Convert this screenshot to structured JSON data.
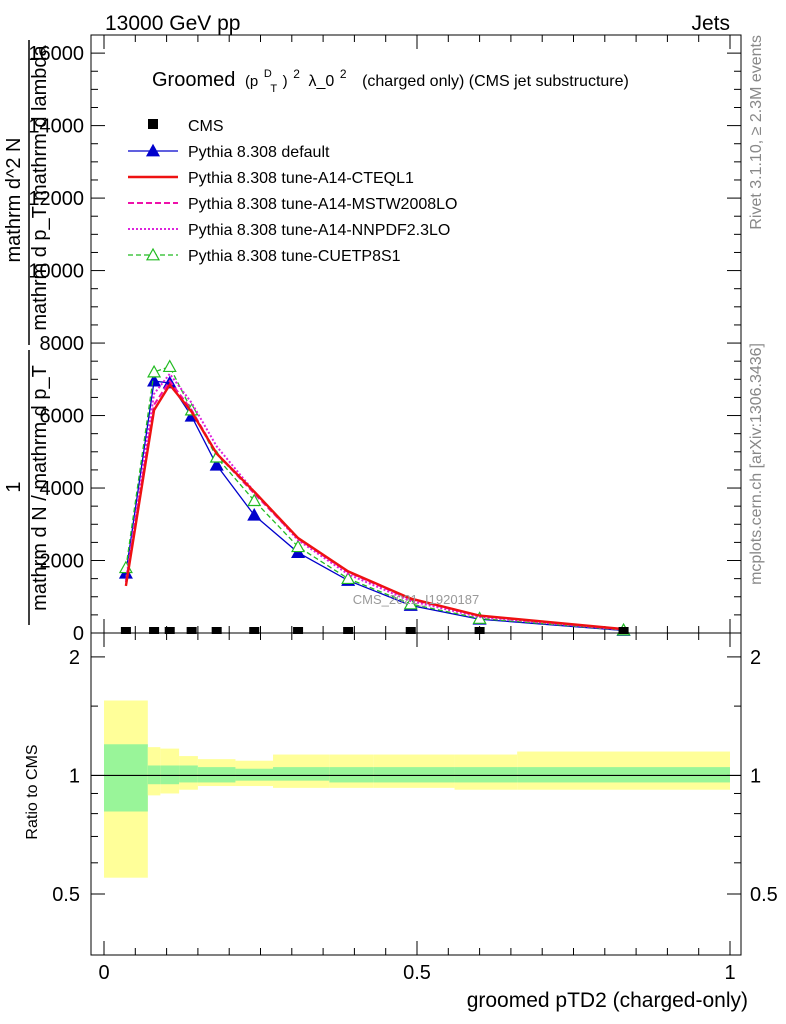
{
  "header": {
    "left": "13000 GeV pp",
    "right": "Jets",
    "side_top": "Rivet 3.1.10, ≥ 2.3M events",
    "side_bottom": "mcplots.cern.ch [arXiv:1306.3436]"
  },
  "main_title": {
    "prefix": "Groomed",
    "p": "(p",
    "pt_sup": "D",
    "pt_sub": "T",
    "close": ")",
    "sq": "2",
    "lambda": "λ_0",
    "sq2": "2",
    "suffix": "(charged only) (CMS jet substructure)"
  },
  "watermark": "CMS_2021_I1920187",
  "colors": {
    "cms": "#000000",
    "default": "#0000cc",
    "cteql1": "#ee1111",
    "mstw": "#ee11aa",
    "nnpdf": "#dd22dd",
    "cuetp": "#22bb22",
    "band_inner": "#99f599",
    "band_outer": "#ffff99"
  },
  "chart_data": {
    "type": "line",
    "xlabel": "groomed pTD2 (charged-only)",
    "ylabel_main": {
      "frac_num": "1",
      "frac_den": "mathrm d N / mathrm d p_T",
      "frac2_num": "mathrm d^2 N",
      "frac2_den": "mathrm d p_T mathrm d lambda"
    },
    "ylabel_ratio": "Ratio to CMS",
    "xlim": [
      0,
      1
    ],
    "ylim": [
      0,
      16500
    ],
    "ratio_ylim": [
      0.35,
      2.3
    ],
    "x_ticks": [
      "0",
      "0.5",
      "1"
    ],
    "y_ticks": [
      "0",
      "2000",
      "4000",
      "6000",
      "8000",
      "10000",
      "12000",
      "14000",
      "16000"
    ],
    "ratio_ticks": [
      "0.5",
      "1",
      "2"
    ],
    "bins": [
      {
        "lo": 0.0,
        "hi": 0.07,
        "x": 0.035
      },
      {
        "lo": 0.07,
        "hi": 0.09,
        "x": 0.08
      },
      {
        "lo": 0.09,
        "hi": 0.12,
        "x": 0.105
      },
      {
        "lo": 0.12,
        "hi": 0.15,
        "x": 0.14
      },
      {
        "lo": 0.15,
        "hi": 0.21,
        "x": 0.18
      },
      {
        "lo": 0.21,
        "hi": 0.27,
        "x": 0.24
      },
      {
        "lo": 0.27,
        "hi": 0.36,
        "x": 0.31
      },
      {
        "lo": 0.36,
        "hi": 0.43,
        "x": 0.39
      },
      {
        "lo": 0.43,
        "hi": 0.56,
        "x": 0.49
      },
      {
        "lo": 0.56,
        "hi": 0.66,
        "x": 0.6
      },
      {
        "lo": 0.66,
        "hi": 1.0,
        "x": 0.83
      }
    ],
    "ratio_band_inner": [
      [
        0.81,
        1.2
      ],
      [
        0.95,
        1.06
      ],
      [
        0.95,
        1.06
      ],
      [
        0.96,
        1.06
      ],
      [
        0.96,
        1.05
      ],
      [
        0.97,
        1.04
      ],
      [
        0.97,
        1.05
      ],
      [
        0.96,
        1.05
      ],
      [
        0.96,
        1.05
      ],
      [
        0.96,
        1.05
      ],
      [
        0.96,
        1.05
      ]
    ],
    "ratio_band_outer": [
      [
        0.55,
        1.55
      ],
      [
        0.89,
        1.18
      ],
      [
        0.9,
        1.17
      ],
      [
        0.92,
        1.12
      ],
      [
        0.94,
        1.1
      ],
      [
        0.94,
        1.09
      ],
      [
        0.93,
        1.13
      ],
      [
        0.93,
        1.13
      ],
      [
        0.93,
        1.13
      ],
      [
        0.92,
        1.13
      ],
      [
        0.92,
        1.15
      ]
    ],
    "series": [
      {
        "name": "CMS",
        "key": "cms",
        "style": "marker",
        "values": [
          0,
          0,
          0,
          0,
          0,
          0,
          0,
          0,
          0,
          0,
          0
        ]
      },
      {
        "name": "Pythia 8.308 default",
        "key": "default",
        "style": "solid-tri",
        "values": [
          1650,
          6950,
          6900,
          5980,
          4630,
          3250,
          2220,
          1450,
          760,
          380,
          70
        ]
      },
      {
        "name": "Pythia 8.308 tune-A14-CTEQL1",
        "key": "cteql1",
        "style": "solid-thick",
        "values": [
          1300,
          6150,
          6850,
          6100,
          4950,
          3900,
          2620,
          1700,
          950,
          480,
          110
        ]
      },
      {
        "name": "Pythia 8.308 tune-A14-MSTW2008LO",
        "key": "mstw",
        "style": "dashed",
        "values": [
          1400,
          6300,
          6950,
          6150,
          4950,
          3850,
          2600,
          1680,
          930,
          470,
          100
        ]
      },
      {
        "name": "Pythia 8.308 tune-A14-NNPDF2.3LO",
        "key": "nnpdf",
        "style": "dotted",
        "values": [
          1450,
          6600,
          7150,
          6350,
          5150,
          3900,
          2560,
          1620,
          880,
          440,
          90
        ]
      },
      {
        "name": "Pythia 8.308 tune-CUETP8S1",
        "key": "cuetp",
        "style": "dashed-tri",
        "values": [
          1800,
          7200,
          7350,
          6150,
          4850,
          3650,
          2380,
          1500,
          800,
          400,
          80
        ]
      }
    ]
  }
}
